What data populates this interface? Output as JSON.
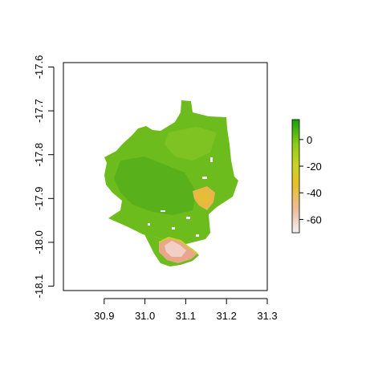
{
  "chart_data": {
    "type": "heatmap",
    "title": "",
    "xlabel": "",
    "ylabel": "",
    "xlim": [
      30.8,
      31.3
    ],
    "ylim": [
      -18.11,
      -17.59
    ],
    "x_ticks": [
      "30.9",
      "31.0",
      "31.1",
      "31.2",
      "31.3"
    ],
    "y_ticks": [
      "-17.6",
      "-17.7",
      "-17.8",
      "-17.9",
      "-18.0",
      "-18.1"
    ],
    "grid": false,
    "legend": {
      "type": "colorbar",
      "placement": "right",
      "range": [
        -70,
        15
      ],
      "ticks": [
        "0",
        "-20",
        "-40",
        "-60"
      ],
      "colors": [
        "#f2f2f2",
        "#eebc9e",
        "#e6c02a",
        "#8ecc18",
        "#15a10a"
      ]
    },
    "colors": {
      "dominant": "#6cbc1e",
      "dark_green": "#3ea61a",
      "light_green": "#86c625",
      "yellow_orange": "#e8b64a",
      "salmon": "#e8a68a",
      "pink": "#f1cfc4"
    },
    "regions": [
      {
        "label": "bulk area",
        "value_range": [
          -5,
          15
        ]
      },
      {
        "label": "eastern patch",
        "value_range": [
          -40,
          -30
        ]
      },
      {
        "label": "southern patch",
        "value_range": [
          -70,
          -40
        ]
      }
    ]
  }
}
